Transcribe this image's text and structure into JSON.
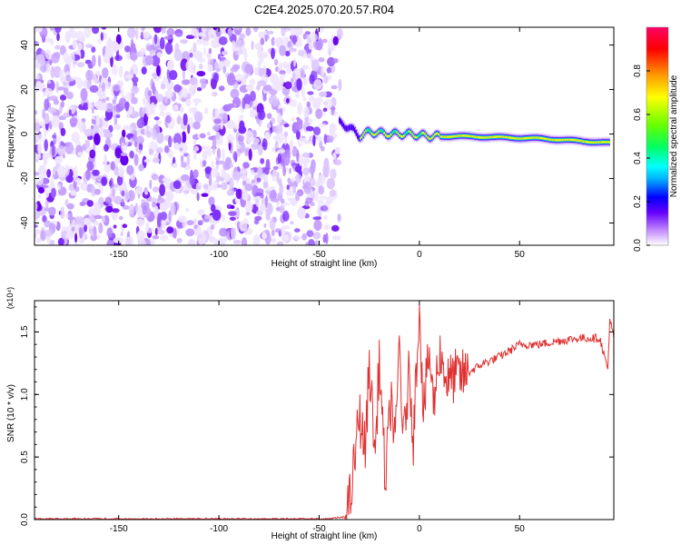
{
  "title": "C2E4.2025.070.20.57.R04",
  "chart_data": [
    {
      "type": "heatmap",
      "xlabel": "Height of straight line (km)",
      "ylabel": "Frequency (Hz)",
      "xlim": [
        -192,
        97
      ],
      "ylim": [
        -50,
        48
      ],
      "x_ticks": [
        -150,
        -100,
        -50,
        0,
        50
      ],
      "y_ticks": [
        -40,
        -20,
        0,
        20,
        40
      ],
      "colorbar": {
        "label": "Normalized spectral amplitude",
        "range": [
          0,
          1
        ],
        "ticks": [
          "0.0",
          "0.2",
          "0.4",
          "0.6",
          "0.8"
        ],
        "colors": [
          "#ffffff",
          "#cc99ff",
          "#6600ff",
          "#0000ff",
          "#00aaff",
          "#00ffff",
          "#00ff66",
          "#66ff00",
          "#ffff00",
          "#ff9900",
          "#ff0000",
          "#ff0066"
        ]
      },
      "regions": [
        {
          "name": "noise",
          "x_range": [
            -192,
            -45
          ],
          "freq_range": [
            -50,
            48
          ],
          "amplitude": "0.0-0.15"
        },
        {
          "name": "signal",
          "x_range": [
            -42,
            97
          ],
          "freq_center": [
            [
              -40,
              5
            ],
            [
              -35,
              3
            ],
            [
              -30,
              -1
            ],
            [
              -25,
              1
            ],
            [
              -15,
              0
            ],
            [
              -5,
              0
            ],
            [
              5,
              -1
            ],
            [
              20,
              -1
            ],
            [
              60,
              -2
            ],
            [
              95,
              -4
            ]
          ],
          "amplitude": "0.2-1.0"
        }
      ]
    },
    {
      "type": "line",
      "xlabel": "Height of straight line (km)",
      "ylabel": "SNR (10 * v/v)",
      "y_multiplier": "(x10⁴)",
      "xlim": [
        -192,
        97
      ],
      "ylim": [
        0,
        1.75
      ],
      "x_ticks": [
        -150,
        -100,
        -50,
        0,
        50
      ],
      "y_ticks": [
        "0.0",
        "0.5",
        "1.0",
        "1.5"
      ],
      "series": [
        {
          "color": "#e03030",
          "x": [
            -192,
            -150,
            -100,
            -50,
            -37,
            -34,
            -30,
            -27,
            -25,
            -22,
            -20,
            -17,
            -14,
            -12,
            -10,
            -8,
            -5,
            -3,
            0,
            2,
            5,
            7,
            10,
            14,
            18,
            22,
            27,
            32,
            37,
            42,
            50,
            60,
            70,
            80,
            90,
            94,
            95,
            97
          ],
          "y": [
            0.0,
            0.0,
            0.0,
            0.0,
            0.02,
            0.2,
            0.85,
            0.55,
            1.25,
            0.5,
            1.3,
            0.3,
            1.0,
            0.55,
            1.45,
            0.6,
            1.2,
            0.65,
            1.75,
            0.85,
            1.35,
            0.9,
            1.35,
            1.1,
            1.15,
            1.15,
            1.2,
            1.25,
            1.28,
            1.32,
            1.4,
            1.4,
            1.43,
            1.45,
            1.45,
            1.2,
            1.6,
            1.45
          ]
        }
      ]
    }
  ]
}
